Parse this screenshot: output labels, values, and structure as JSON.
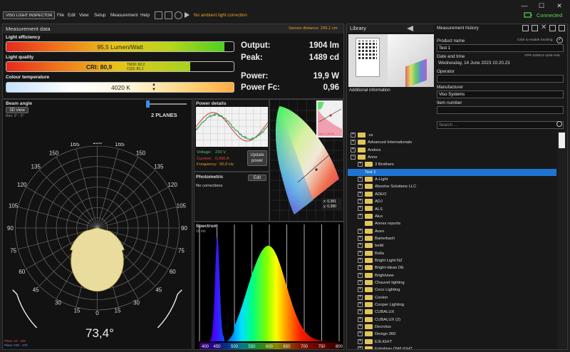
{
  "titlebar": {
    "brand": "VISO LIGHT INSPECTOR",
    "menu": [
      "File",
      "Edit",
      "View",
      "Setup",
      "Measurement",
      "Help"
    ],
    "ambient": "No ambient light correction",
    "status": "Connected",
    "win": [
      "—",
      "☐",
      "✕"
    ]
  },
  "measurement": {
    "title": "Measurement data",
    "sensor_distance": "Sensor distance: 206,1 cm",
    "efficiency": {
      "label": "Light efficiency",
      "value": "95,5 Lumen/Watt",
      "fill": 0.96
    },
    "quality": {
      "label": "Light quality",
      "value": "CRI: 80,9",
      "tm30": "TM30: 82,2",
      "cqs": "CQS: 81,1",
      "fill": 0.81
    },
    "colour": {
      "label": "Colour temperature",
      "value": "4020 K"
    },
    "output": {
      "label": "Output:",
      "value": "1904 lm"
    },
    "peak": {
      "label": "Peak:",
      "value": "1489 cd"
    },
    "power": {
      "label": "Power:",
      "value": "19,9 W"
    },
    "powerfc": {
      "label": "Power Fc:",
      "value": "0,96"
    }
  },
  "beam": {
    "title": "Beam angle",
    "view_btn": "3D view",
    "res": "Res: 3° - 5°",
    "planes": "2 PLANES",
    "angle": "73,4°",
    "top_labels": [
      "180",
      "165",
      "150",
      "135",
      "120",
      "105",
      "90",
      "75",
      "60",
      "45"
    ],
    "bottom_labels": [
      "30",
      "15",
      "0",
      "15",
      "30"
    ],
    "legend": [
      "Plane C0 - 180",
      "Plane C90 - 270"
    ]
  },
  "power_details": {
    "title": "Power details",
    "voltage_lbl": "Voltage:",
    "voltage": "230 V",
    "current_lbl": "Current:",
    "current": "0,090 A",
    "freq_lbl": "Frequency:",
    "freq": "50,0 Hz",
    "update_btn": "Update power"
  },
  "photometric": {
    "title": "Photometric",
    "edit": "Edit",
    "note": "No corrections"
  },
  "cie": {
    "x": "x: 0,381",
    "y": "y: 0,380",
    "inset": "duv: 0,0016"
  },
  "spectrum": {
    "title": "Spectrum",
    "sub": "16 ms",
    "ticks": [
      "400",
      "450",
      "500",
      "550",
      "600",
      "650",
      "700",
      "750",
      "800"
    ]
  },
  "library": {
    "title": "Library",
    "info": "Additional information",
    "tree": [
      {
        "label": ".vs",
        "level": 0,
        "exp": "+"
      },
      {
        "label": "Advanced Internationals",
        "level": 0,
        "exp": "+"
      },
      {
        "label": "Anders",
        "level": 0,
        "exp": "+"
      },
      {
        "label": "Anne",
        "level": 0,
        "exp": "−"
      },
      {
        "label": "3 Brothers",
        "level": 1,
        "exp": "+"
      },
      {
        "label": "Test 1",
        "level": 2,
        "exp": "",
        "selected": true
      },
      {
        "label": "A-Light",
        "level": 1,
        "exp": "+"
      },
      {
        "label": "Absolve Solutions LLC",
        "level": 1,
        "exp": "+"
      },
      {
        "label": "ADEO",
        "level": 1,
        "exp": "+"
      },
      {
        "label": "ADJ",
        "level": 1,
        "exp": "+"
      },
      {
        "label": "ALS",
        "level": 1,
        "exp": "+"
      },
      {
        "label": "Alux",
        "level": 1,
        "exp": "+"
      },
      {
        "label": "Annex reports",
        "level": 1,
        "exp": ""
      },
      {
        "label": "Aveo",
        "level": 1,
        "exp": "+"
      },
      {
        "label": "Barterbach",
        "level": 1,
        "exp": "+"
      },
      {
        "label": "beild",
        "level": 1,
        "exp": "+"
      },
      {
        "label": "Bolla",
        "level": 1,
        "exp": "+"
      },
      {
        "label": "Bright Light NZ",
        "level": 1,
        "exp": "+"
      },
      {
        "label": "Bright-Ideas DE",
        "level": 1,
        "exp": "+"
      },
      {
        "label": "Brightview",
        "level": 1,
        "exp": "+"
      },
      {
        "label": "Chauvet lighting",
        "level": 1,
        "exp": "+"
      },
      {
        "label": "Coco Lighting",
        "level": 1,
        "exp": "+"
      },
      {
        "label": "Coolon",
        "level": 1,
        "exp": "+"
      },
      {
        "label": "Cooper Lighting",
        "level": 1,
        "exp": "+"
      },
      {
        "label": "CUBALUX",
        "level": 1,
        "exp": "+"
      },
      {
        "label": "CUBALUX (2)",
        "level": 1,
        "exp": "+"
      },
      {
        "label": "Decrolux",
        "level": 1,
        "exp": "+"
      },
      {
        "label": "Design 360",
        "level": 1,
        "exp": "+"
      },
      {
        "label": "E3LIGHT",
        "level": 1,
        "exp": "+"
      },
      {
        "label": "Enlighten OWLIGHT",
        "level": 1,
        "exp": "+"
      }
    ]
  },
  "history": {
    "title": "Measurement history",
    "click_enable": "Click to enable tracking",
    "product_lbl": "Product name",
    "product": "Test 1",
    "date_lbl": "Date and time",
    "serial": "VPR-230614-1166-A05",
    "date": "Wednesday, 14 June 2023 10.20.23",
    "operator_lbl": "Operator",
    "manufacturer_lbl": "Manufacturer",
    "manufacturer": "Viso Systems",
    "item_lbl": "Item number",
    "search_ph": "Search ..."
  }
}
